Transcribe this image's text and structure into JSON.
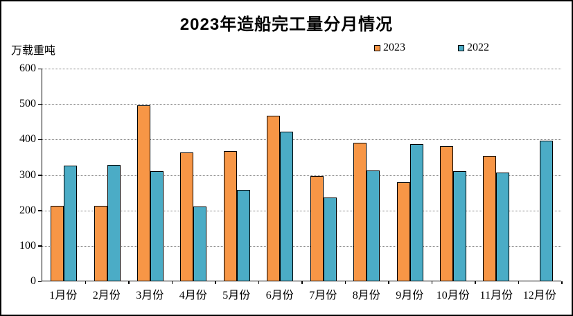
{
  "title": "2023年造船完工量分月情况",
  "y_axis_label": "万载重吨",
  "legend": {
    "items": [
      {
        "label": "2023",
        "color": "#F79646"
      },
      {
        "label": "2022",
        "color": "#4BACC6"
      }
    ]
  },
  "colors": {
    "series_2023": "#F79646",
    "series_2022": "#4BACC6",
    "bar_outline": "#000000",
    "gridline": "#7f7f7f",
    "title_text": "#000000",
    "background": "#ffffff"
  },
  "chart_data": {
    "type": "bar",
    "title": "2023年造船完工量分月情况",
    "ylabel": "万载重吨",
    "xlabel": "",
    "categories": [
      "1月份",
      "2月份",
      "3月份",
      "4月份",
      "5月份",
      "6月份",
      "7月份",
      "8月份",
      "9月份",
      "10月份",
      "11月份",
      "12月份"
    ],
    "series": [
      {
        "name": "2023",
        "color": "#F79646",
        "values": [
          211,
          211,
          494,
          362,
          366,
          466,
          296,
          388,
          277,
          380,
          352,
          null
        ]
      },
      {
        "name": "2022",
        "color": "#4BACC6",
        "values": [
          325,
          327,
          308,
          210,
          257,
          421,
          235,
          310,
          385,
          308,
          305,
          395
        ]
      }
    ],
    "ylim": [
      0,
      600
    ],
    "yticks": [
      0,
      100,
      200,
      300,
      400,
      500,
      600
    ],
    "grid": "horizontal-dotted",
    "legend_position": "top-right"
  }
}
